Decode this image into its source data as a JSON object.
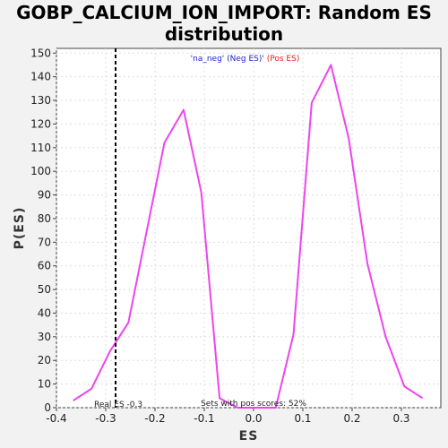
{
  "chart_data": {
    "type": "line",
    "title_line1": "GOBP_CALCIUM_ION_IMPORT: Random ES",
    "title_line2": "distribution",
    "xlabel": "ES",
    "ylabel": "P(ES)",
    "xlim": [
      -0.4,
      0.38
    ],
    "ylim": [
      0,
      152
    ],
    "x_ticks": [
      -0.4,
      -0.3,
      -0.2,
      -0.1,
      0.0,
      0.1,
      0.2,
      0.3
    ],
    "x_tick_labels": [
      "-0.4",
      "-0.3",
      "-0.2",
      "-0.1",
      "0.0",
      "0.1",
      "0.2",
      "0.3"
    ],
    "y_ticks": [
      0,
      10,
      20,
      30,
      40,
      50,
      60,
      70,
      80,
      90,
      100,
      110,
      120,
      130,
      140,
      150
    ],
    "y_tick_labels": [
      "0",
      "10",
      "20",
      "30",
      "40",
      "50",
      "60",
      "70",
      "80",
      "90",
      "100",
      "110",
      "120",
      "130",
      "140",
      "150"
    ],
    "grid": true,
    "series": [
      {
        "color": "#ee44ee",
        "x": [
          -0.366,
          -0.329,
          -0.291,
          -0.254,
          -0.181,
          -0.142,
          -0.106,
          -0.069,
          -0.032,
          0.006,
          0.045,
          0.081,
          0.118,
          0.157,
          0.193,
          0.231,
          0.268,
          0.306,
          0.343
        ],
        "y": [
          3,
          8,
          24,
          36,
          112,
          126,
          91,
          4,
          0,
          0,
          0,
          31,
          129,
          145,
          114,
          61,
          30,
          9,
          4
        ]
      }
    ],
    "real_es": {
      "x": -0.28,
      "label": "Real ES -0.3",
      "color": "#000000"
    },
    "legend": {
      "neg_text": "'na_neg' (Neg ES)'",
      "neg_color": "#2222cc",
      "pos_text": " (Pos ES)",
      "pos_color": "#dd2222",
      "placement": "top-center"
    },
    "annotation_pos": "Sets with pos scores: 52%"
  }
}
